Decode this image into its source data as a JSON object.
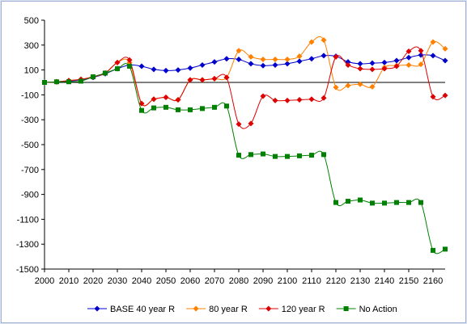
{
  "chart_data": {
    "type": "line",
    "title": "",
    "xlabel": "",
    "ylabel": "",
    "xlim": [
      2000,
      2165
    ],
    "ylim": [
      -1500,
      500
    ],
    "x_ticks": [
      2000,
      2010,
      2020,
      2030,
      2040,
      2050,
      2060,
      2070,
      2080,
      2090,
      2100,
      2110,
      2120,
      2130,
      2140,
      2150,
      2160
    ],
    "y_ticks": [
      500,
      300,
      100,
      -100,
      -300,
      -500,
      -700,
      -900,
      -1100,
      -1300,
      -1500
    ],
    "grid": false,
    "legend_position": "bottom",
    "series": [
      {
        "name": "BASE 40 year R",
        "color": "#0000cc",
        "marker": "diamond",
        "x": [
          2000,
          2005,
          2010,
          2015,
          2020,
          2025,
          2030,
          2035,
          2040,
          2045,
          2050,
          2055,
          2060,
          2065,
          2070,
          2075,
          2080,
          2085,
          2090,
          2095,
          2100,
          2105,
          2110,
          2115,
          2120,
          2125,
          2130,
          2135,
          2140,
          2145,
          2150,
          2155,
          2160,
          2165
        ],
        "y": [
          0,
          5,
          10,
          20,
          40,
          70,
          110,
          140,
          130,
          105,
          95,
          100,
          115,
          140,
          165,
          190,
          185,
          150,
          135,
          140,
          150,
          170,
          190,
          215,
          210,
          165,
          150,
          155,
          160,
          175,
          200,
          220,
          215,
          175
        ]
      },
      {
        "name": "80 year R",
        "color": "#ff8000",
        "marker": "diamond",
        "x": [
          2000,
          2005,
          2010,
          2015,
          2020,
          2025,
          2030,
          2035,
          2040,
          2045,
          2050,
          2055,
          2060,
          2065,
          2070,
          2075,
          2080,
          2085,
          2090,
          2095,
          2100,
          2105,
          2110,
          2115,
          2120,
          2125,
          2130,
          2135,
          2140,
          2145,
          2150,
          2155,
          2160,
          2165
        ],
        "y": [
          0,
          5,
          15,
          25,
          45,
          75,
          160,
          160,
          -170,
          -135,
          -120,
          -140,
          20,
          20,
          30,
          40,
          255,
          205,
          185,
          185,
          185,
          210,
          325,
          340,
          -40,
          -25,
          -15,
          -35,
          120,
          135,
          140,
          145,
          325,
          270
        ]
      },
      {
        "name": "120 year R",
        "color": "#dd0000",
        "marker": "diamond",
        "x": [
          2000,
          2005,
          2010,
          2015,
          2020,
          2025,
          2030,
          2035,
          2040,
          2045,
          2050,
          2055,
          2060,
          2065,
          2070,
          2075,
          2080,
          2085,
          2090,
          2095,
          2100,
          2105,
          2110,
          2115,
          2120,
          2125,
          2130,
          2135,
          2140,
          2145,
          2150,
          2155,
          2160,
          2165
        ],
        "y": [
          0,
          5,
          15,
          25,
          45,
          75,
          160,
          180,
          -170,
          -135,
          -120,
          -140,
          20,
          20,
          30,
          40,
          -335,
          -330,
          -110,
          -145,
          -145,
          -140,
          -135,
          -125,
          205,
          140,
          110,
          105,
          110,
          130,
          250,
          255,
          -115,
          -105
        ]
      },
      {
        "name": "No Action",
        "color": "#008000",
        "marker": "square",
        "x": [
          2000,
          2005,
          2010,
          2015,
          2020,
          2025,
          2030,
          2035,
          2040,
          2045,
          2050,
          2055,
          2060,
          2065,
          2070,
          2075,
          2080,
          2085,
          2090,
          2095,
          2100,
          2105,
          2110,
          2115,
          2120,
          2125,
          2130,
          2135,
          2140,
          2145,
          2150,
          2155,
          2160,
          2165
        ],
        "y": [
          0,
          5,
          5,
          10,
          45,
          75,
          110,
          130,
          -225,
          -205,
          -200,
          -220,
          -220,
          -210,
          -200,
          -190,
          -585,
          -580,
          -575,
          -595,
          -595,
          -590,
          -585,
          -580,
          -965,
          -955,
          -945,
          -970,
          -970,
          -965,
          -965,
          -965,
          -1350,
          -1340
        ]
      }
    ]
  }
}
